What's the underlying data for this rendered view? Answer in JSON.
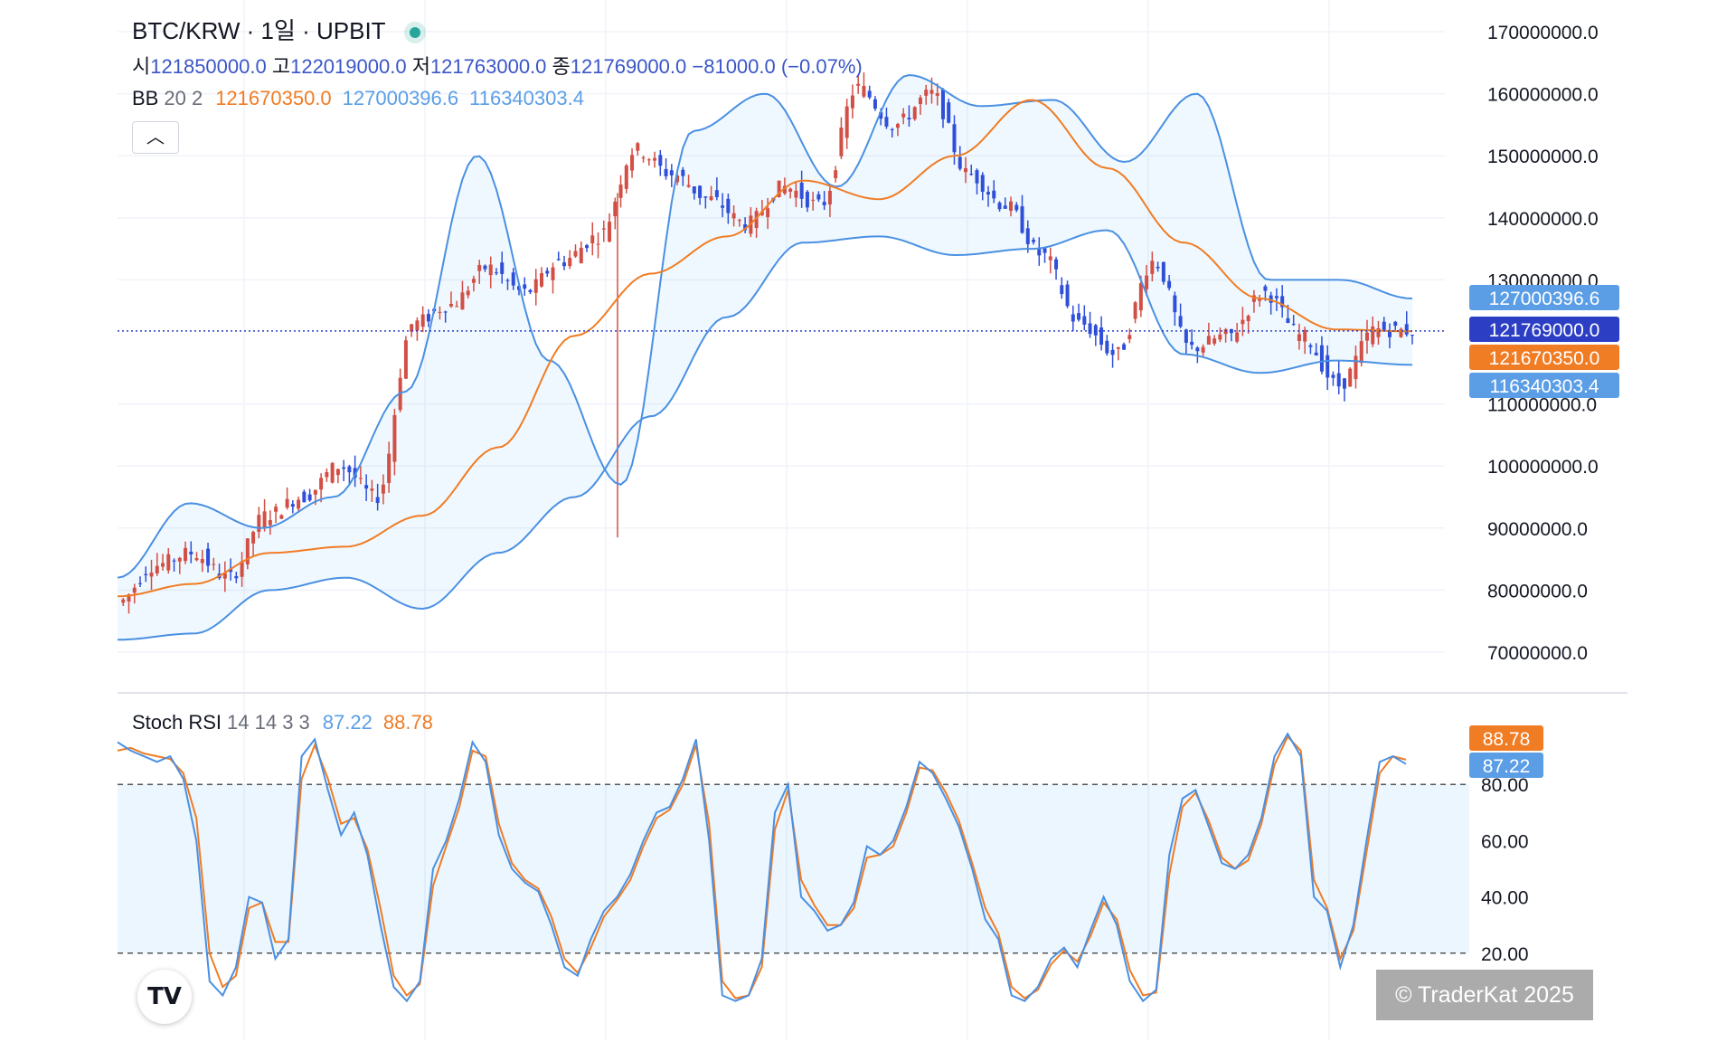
{
  "header": {
    "title": "BTC/KRW · 1일 · UPBIT",
    "ohlc": {
      "open_label": "시",
      "open": "121850000.0",
      "high_label": "고",
      "high": "122019000.0",
      "low_label": "저",
      "low": "121763000.0",
      "close_label": "종",
      "close": "121769000.0",
      "change": "−81000.0 (−0.07%)"
    },
    "bb": {
      "name": "BB",
      "params": "20 2",
      "middle": "121670350.0",
      "upper": "127000396.6",
      "lower": "116340303.4"
    },
    "collapse_icon": "chevron-up-icon"
  },
  "rsi_header": {
    "name": "Stoch RSI",
    "params": "14 14 3 3",
    "k": "87.22",
    "d": "88.78"
  },
  "price_badges": {
    "upper": "127000396.6",
    "last": "121769000.0",
    "middle": "121670350.0",
    "lower": "116340303.4"
  },
  "rsi_badges": {
    "d": "88.78",
    "k": "87.22"
  },
  "watermark": "© TraderKat 2025",
  "logo": "TV",
  "colors": {
    "up": "#d24f45",
    "down": "#2f4fd8",
    "bb_mid": "#f07c24",
    "bb_band": "#4a90e2",
    "k": "#4a90e2",
    "d": "#f07c24",
    "last_badge": "#2b3ec4"
  },
  "chart_data": [
    {
      "type": "candlestick",
      "ylim": [
        60000000,
        175000000
      ],
      "y_ticks": [
        "170000000.0",
        "160000000.0",
        "150000000.0",
        "140000000.0",
        "130000000.0",
        "110000000.0",
        "100000000.0",
        "90000000.0",
        "80000000.0",
        "70000000.0"
      ],
      "series": [
        {
          "name": "BB",
          "kind": "upper",
          "key_values": [
            82,
            94,
            90,
            95,
            112,
            150,
            117,
            97,
            154,
            160,
            145,
            163,
            158,
            159,
            149,
            160,
            130,
            130,
            127
          ]
        },
        {
          "name": "BB",
          "kind": "middle",
          "key_values": [
            79,
            81,
            86,
            87,
            92,
            103,
            121,
            131,
            137,
            146,
            143,
            150,
            159,
            148,
            136,
            127,
            122,
            121.7
          ]
        },
        {
          "name": "BB",
          "kind": "lower",
          "key_values": [
            72,
            73,
            80,
            82,
            77,
            86,
            95,
            108,
            124,
            136,
            137,
            134,
            135,
            138,
            118,
            115,
            117,
            116.3
          ]
        },
        {
          "name": "candles",
          "note": "close price path (millions KRW)",
          "key_values": [
            78,
            84,
            86,
            82,
            92,
            95,
            100,
            95,
            123,
            126,
            132,
            128,
            133,
            137,
            151,
            147,
            143,
            139,
            145,
            142,
            161,
            155,
            160,
            147,
            142,
            134,
            123,
            118,
            133,
            119,
            121,
            128,
            121,
            113,
            122,
            121.8
          ]
        }
      ]
    },
    {
      "type": "line",
      "title": "Stoch RSI",
      "ylim": [
        0,
        100
      ],
      "y_ticks": [
        "80.00",
        "60.00",
        "40.00",
        "20.00"
      ],
      "bands": [
        20,
        80
      ],
      "series": [
        {
          "name": "K",
          "values": [
            95,
            92,
            90,
            88,
            90,
            82,
            60,
            10,
            5,
            15,
            40,
            38,
            18,
            25,
            90,
            96,
            78,
            62,
            70,
            55,
            30,
            8,
            3,
            10,
            50,
            60,
            75,
            95,
            88,
            62,
            50,
            45,
            42,
            30,
            15,
            12,
            25,
            35,
            40,
            48,
            60,
            70,
            72,
            82,
            96,
            60,
            5,
            3,
            5,
            18,
            70,
            80,
            40,
            35,
            28,
            30,
            38,
            58,
            55,
            60,
            72,
            88,
            84,
            75,
            65,
            50,
            32,
            25,
            5,
            3,
            8,
            18,
            22,
            15,
            28,
            40,
            30,
            10,
            3,
            7,
            55,
            75,
            78,
            65,
            52,
            50,
            55,
            68,
            90,
            98,
            90,
            40,
            35,
            15,
            30,
            60,
            88,
            90,
            87.22
          ]
        },
        {
          "name": "D",
          "values": [
            92,
            93,
            91,
            90,
            89,
            84,
            68,
            20,
            8,
            12,
            36,
            38,
            24,
            24,
            82,
            94,
            82,
            66,
            68,
            57,
            36,
            12,
            5,
            9,
            44,
            58,
            72,
            92,
            90,
            66,
            52,
            46,
            43,
            33,
            18,
            13,
            22,
            33,
            39,
            46,
            58,
            68,
            71,
            80,
            94,
            66,
            10,
            4,
            5,
            15,
            64,
            78,
            46,
            37,
            30,
            30,
            36,
            54,
            55,
            58,
            70,
            86,
            85,
            77,
            67,
            52,
            36,
            27,
            8,
            4,
            7,
            16,
            21,
            17,
            26,
            38,
            32,
            14,
            5,
            6,
            48,
            72,
            77,
            67,
            54,
            50,
            53,
            66,
            87,
            97,
            92,
            46,
            36,
            18,
            28,
            56,
            84,
            90,
            88.78
          ]
        }
      ]
    }
  ]
}
